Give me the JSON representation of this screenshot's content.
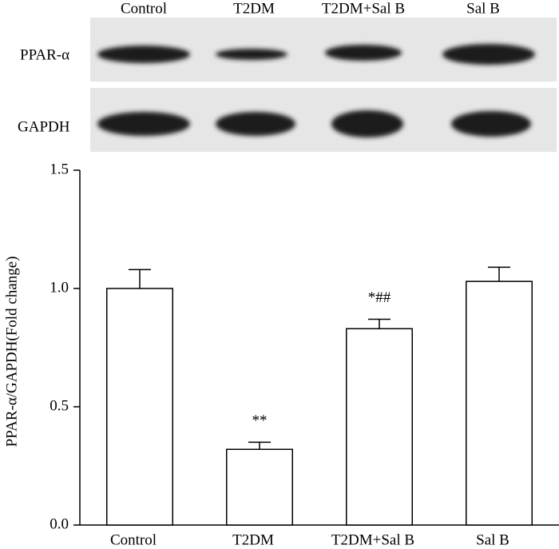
{
  "blot": {
    "lanes": [
      "Control",
      "T2DM",
      "T2DM+Sal B",
      "Sal B"
    ],
    "rows": [
      "PPAR-α",
      "GAPDH"
    ]
  },
  "chart_data": {
    "type": "bar",
    "y_label": "PPAR-α/GAPDH(Fold change)",
    "categories": [
      "Control",
      "T2DM",
      "T2DM+Sal B",
      "Sal B"
    ],
    "values": [
      1.0,
      0.32,
      0.83,
      1.03
    ],
    "errors": [
      0.08,
      0.03,
      0.04,
      0.06
    ],
    "annotations": [
      null,
      "**",
      "*##",
      null
    ],
    "color": "#ffffff",
    "ylim": [
      0,
      1.5
    ],
    "yticks": [
      {
        "value": 0,
        "label": "0.0"
      },
      {
        "value": 0.5,
        "label": "0.5"
      },
      {
        "value": 1.0,
        "label": "1.0"
      },
      {
        "value": 1.5,
        "label": "1.5"
      }
    ]
  }
}
